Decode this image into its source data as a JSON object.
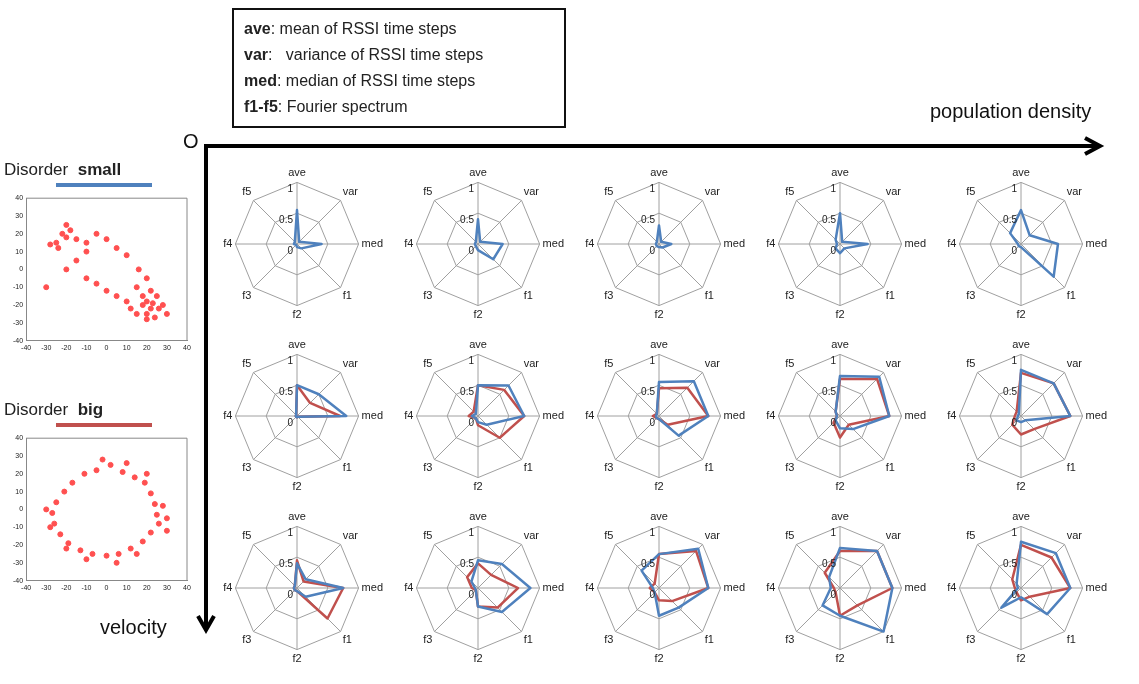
{
  "chart_data": [
    {
      "type": "other",
      "annotations": [
        "ave: mean of RSSI time steps",
        "var:   variance of RSSI time steps",
        "med: median of RSSI time steps",
        "f1-f5: Fourier spectrum",
        {
          "text": "population density"
        },
        {
          "text": "velocity"
        },
        {
          "text": "O"
        }
      ]
    },
    {
      "type": "scatter",
      "title": "Disorder small",
      "color": "#ff5050",
      "xlim": [
        -40,
        40
      ],
      "ylim": [
        -40,
        40
      ],
      "xticks": [
        -40,
        -30,
        -20,
        -10,
        0,
        10,
        20,
        30,
        40
      ],
      "yticks": [
        -40,
        -30,
        -20,
        -10,
        0,
        10,
        20,
        30,
        40
      ],
      "x": [
        -25,
        -22,
        -20,
        -18,
        -24,
        -15,
        -28,
        -20,
        -10,
        -5,
        0,
        5,
        10,
        -15,
        -10,
        -5,
        0,
        5,
        10,
        15,
        18,
        20,
        22,
        25,
        20,
        18,
        23,
        26,
        15,
        22,
        28,
        20,
        12,
        16,
        20,
        -30,
        -20,
        -10,
        30,
        24
      ],
      "values": [
        15,
        20,
        18,
        22,
        12,
        17,
        14,
        25,
        15,
        20,
        17,
        12,
        8,
        5,
        -5,
        -8,
        -12,
        -15,
        -18,
        -10,
        -20,
        -18,
        -22,
        -15,
        -25,
        -15,
        -19,
        -22,
        -25,
        -12,
        -20,
        -28,
        -22,
        0,
        -5,
        -10,
        0,
        10,
        -25,
        -27
      ]
    },
    {
      "type": "scatter",
      "title": "Disorder big",
      "color": "#ff5050",
      "xlim": [
        -40,
        40
      ],
      "ylim": [
        -40,
        40
      ],
      "xticks": [
        -40,
        -30,
        -20,
        -10,
        0,
        10,
        20,
        30,
        40
      ],
      "yticks": [
        -40,
        -30,
        -20,
        -10,
        0,
        10,
        20,
        30,
        40
      ],
      "x": [
        25,
        24,
        22,
        19,
        14,
        8,
        2,
        -5,
        -11,
        -17,
        -21,
        -25,
        -27,
        -26,
        -23,
        -19,
        -13,
        -7,
        0,
        6,
        12,
        18,
        22,
        26,
        30,
        28,
        20,
        -30,
        -28,
        -10,
        5,
        15,
        10,
        -2,
        -20,
        30
      ],
      "values": [
        -3,
        3,
        9,
        15,
        18,
        21,
        25,
        22,
        20,
        15,
        10,
        4,
        -2,
        -8,
        -14,
        -19,
        -23,
        -25,
        -26,
        -25,
        -22,
        -18,
        -13,
        -8,
        -5,
        2,
        20,
        0,
        -10,
        -28,
        -30,
        -25,
        26,
        28,
        -22,
        -12
      ]
    },
    {
      "type": "radar",
      "categories": [
        "ave",
        "var",
        "med",
        "f1",
        "f2",
        "f3",
        "f4",
        "f5"
      ],
      "ylim": [
        0,
        1
      ],
      "yticks": [
        0,
        0.5,
        1
      ],
      "grid": true,
      "series": [
        {
          "color": "#4f81bd",
          "values": [
            0.55,
            0.05,
            0.4,
            0.1,
            0.05,
            0.02,
            0.05,
            0.05
          ]
        }
      ]
    },
    {
      "type": "radar",
      "categories": [
        "ave",
        "var",
        "med",
        "f1",
        "f2",
        "f3",
        "f4",
        "f5"
      ],
      "ylim": [
        0,
        1
      ],
      "yticks": [
        0,
        0.5,
        1
      ],
      "grid": true,
      "series": [
        {
          "color": "#4f81bd",
          "values": [
            0.4,
            0.05,
            0.4,
            0.35,
            0.1,
            0.05,
            0.05,
            0.05
          ]
        }
      ]
    },
    {
      "type": "radar",
      "categories": [
        "ave",
        "var",
        "med",
        "f1",
        "f2",
        "f3",
        "f4",
        "f5"
      ],
      "ylim": [
        0,
        1
      ],
      "yticks": [
        0,
        0.5,
        1
      ],
      "grid": true,
      "series": [
        {
          "color": "#4f81bd",
          "values": [
            0.3,
            0.05,
            0.2,
            0.08,
            0.05,
            0.05,
            0.05,
            0.05
          ]
        }
      ]
    },
    {
      "type": "radar",
      "categories": [
        "ave",
        "var",
        "med",
        "f1",
        "f2",
        "f3",
        "f4",
        "f5"
      ],
      "ylim": [
        0,
        1
      ],
      "yticks": [
        0,
        0.5,
        1
      ],
      "grid": true,
      "series": [
        {
          "color": "#4f81bd",
          "values": [
            0.5,
            0.05,
            0.45,
            0.1,
            0.15,
            0.1,
            0.05,
            0.1
          ]
        }
      ]
    },
    {
      "type": "radar",
      "categories": [
        "ave",
        "var",
        "med",
        "f1",
        "f2",
        "f3",
        "f4",
        "f5"
      ],
      "ylim": [
        0,
        1
      ],
      "yticks": [
        0,
        0.5,
        1
      ],
      "grid": true,
      "series": [
        {
          "color": "#4f81bd",
          "values": [
            0.55,
            0.2,
            0.6,
            0.75,
            0.05,
            0.05,
            0.05,
            0.25
          ]
        }
      ]
    },
    {
      "type": "radar",
      "categories": [
        "ave",
        "var",
        "med",
        "f1",
        "f2",
        "f3",
        "f4",
        "f5"
      ],
      "ylim": [
        0,
        1
      ],
      "yticks": [
        0,
        0.5,
        1
      ],
      "grid": true,
      "series": [
        {
          "color": "#4f81bd",
          "values": [
            0.5,
            0.5,
            0.8,
            0.02,
            0.02,
            0.02,
            0.02,
            0.02
          ]
        },
        {
          "color": "#c0504d",
          "values": [
            0.5,
            0.3,
            0.7,
            0.02,
            0.02,
            0.02,
            0.02,
            0.02
          ]
        }
      ]
    },
    {
      "type": "radar",
      "categories": [
        "ave",
        "var",
        "med",
        "f1",
        "f2",
        "f3",
        "f4",
        "f5"
      ],
      "ylim": [
        0,
        1
      ],
      "yticks": [
        0,
        0.5,
        1
      ],
      "grid": true,
      "series": [
        {
          "color": "#4f81bd",
          "values": [
            0.5,
            0.7,
            0.75,
            0.2,
            0.1,
            0.05,
            0.1,
            0.05
          ]
        },
        {
          "color": "#c0504d",
          "values": [
            0.5,
            0.6,
            0.75,
            0.5,
            0.15,
            0.05,
            0.15,
            0.1
          ]
        }
      ]
    },
    {
      "type": "radar",
      "categories": [
        "ave",
        "var",
        "med",
        "f1",
        "f2",
        "f3",
        "f4",
        "f5"
      ],
      "ylim": [
        0,
        1
      ],
      "yticks": [
        0,
        0.5,
        1
      ],
      "grid": true,
      "series": [
        {
          "color": "#4f81bd",
          "values": [
            0.55,
            0.8,
            0.8,
            0.45,
            0.05,
            0.05,
            0.05,
            0.05
          ]
        },
        {
          "color": "#c0504d",
          "values": [
            0.45,
            0.65,
            0.8,
            0.2,
            0.05,
            0.05,
            0.1,
            0.05
          ]
        }
      ]
    },
    {
      "type": "radar",
      "categories": [
        "ave",
        "var",
        "med",
        "f1",
        "f2",
        "f3",
        "f4",
        "f5"
      ],
      "ylim": [
        0,
        1
      ],
      "yticks": [
        0,
        0.5,
        1
      ],
      "grid": true,
      "series": [
        {
          "color": "#4f81bd",
          "values": [
            0.65,
            0.9,
            0.8,
            0.3,
            0.2,
            0.1,
            0.05,
            0.1
          ]
        },
        {
          "color": "#c0504d",
          "values": [
            0.6,
            0.85,
            0.8,
            0.2,
            0.35,
            0.15,
            0.05,
            0.1
          ]
        }
      ]
    },
    {
      "type": "radar",
      "categories": [
        "ave",
        "var",
        "med",
        "f1",
        "f2",
        "f3",
        "f4",
        "f5"
      ],
      "ylim": [
        0,
        1
      ],
      "yticks": [
        0,
        0.5,
        1
      ],
      "grid": true,
      "series": [
        {
          "color": "#4f81bd",
          "values": [
            0.75,
            0.75,
            0.8,
            0.1,
            0.1,
            0.1,
            0.05,
            0.05
          ]
        },
        {
          "color": "#c0504d",
          "values": [
            0.7,
            0.75,
            0.8,
            0.3,
            0.3,
            0.2,
            0.1,
            0.1
          ]
        }
      ]
    },
    {
      "type": "radar",
      "categories": [
        "ave",
        "var",
        "med",
        "f1",
        "f2",
        "f3",
        "f4",
        "f5"
      ],
      "ylim": [
        0,
        1
      ],
      "yticks": [
        0,
        0.5,
        1
      ],
      "grid": true,
      "series": [
        {
          "color": "#4f81bd",
          "values": [
            0.4,
            0.2,
            0.75,
            0.2,
            0.05,
            0.05,
            0.05,
            0.05
          ]
        },
        {
          "color": "#c0504d",
          "values": [
            0.45,
            0.15,
            0.75,
            0.7,
            0.05,
            0.05,
            0.05,
            0.05
          ]
        }
      ]
    },
    {
      "type": "radar",
      "categories": [
        "ave",
        "var",
        "med",
        "f1",
        "f2",
        "f3",
        "f4",
        "f5"
      ],
      "ylim": [
        0,
        1
      ],
      "yticks": [
        0,
        0.5,
        1
      ],
      "grid": true,
      "series": [
        {
          "color": "#4f81bd",
          "values": [
            0.45,
            0.55,
            0.85,
            0.55,
            0.3,
            0.05,
            0.05,
            0.15
          ]
        },
        {
          "color": "#c0504d",
          "values": [
            0.4,
            0.3,
            0.65,
            0.45,
            0.3,
            0.05,
            0.1,
            0.25
          ]
        }
      ]
    },
    {
      "type": "radar",
      "categories": [
        "ave",
        "var",
        "med",
        "f1",
        "f2",
        "f3",
        "f4",
        "f5"
      ],
      "ylim": [
        0,
        1
      ],
      "yticks": [
        0,
        0.5,
        1
      ],
      "grid": true,
      "series": [
        {
          "color": "#4f81bd",
          "values": [
            0.55,
            0.9,
            0.8,
            0.45,
            0.45,
            0.1,
            0.1,
            0.4
          ]
        },
        {
          "color": "#c0504d",
          "values": [
            0.55,
            0.85,
            0.8,
            0.3,
            0.2,
            0.1,
            0.15,
            0.1
          ]
        }
      ]
    },
    {
      "type": "radar",
      "categories": [
        "ave",
        "var",
        "med",
        "f1",
        "f2",
        "f3",
        "f4",
        "f5"
      ],
      "ylim": [
        0,
        1
      ],
      "yticks": [
        0,
        0.5,
        1
      ],
      "grid": true,
      "series": [
        {
          "color": "#4f81bd",
          "values": [
            0.65,
            0.85,
            0.85,
            1.0,
            0.45,
            0.4,
            0.15,
            0.25
          ]
        },
        {
          "color": "#c0504d",
          "values": [
            0.6,
            0.85,
            0.85,
            0.4,
            0.45,
            0.1,
            0.1,
            0.35
          ]
        }
      ]
    },
    {
      "type": "radar",
      "categories": [
        "ave",
        "var",
        "med",
        "f1",
        "f2",
        "f3",
        "f4",
        "f5"
      ],
      "ylim": [
        0,
        1
      ],
      "yticks": [
        0,
        0.5,
        1
      ],
      "grid": true,
      "series": [
        {
          "color": "#4f81bd",
          "values": [
            0.75,
            0.8,
            0.8,
            0.6,
            0.15,
            0.45,
            0.05,
            0.1
          ]
        },
        {
          "color": "#c0504d",
          "values": [
            0.7,
            0.7,
            0.8,
            0.2,
            0.2,
            0.1,
            0.1,
            0.2
          ]
        }
      ]
    }
  ]
}
